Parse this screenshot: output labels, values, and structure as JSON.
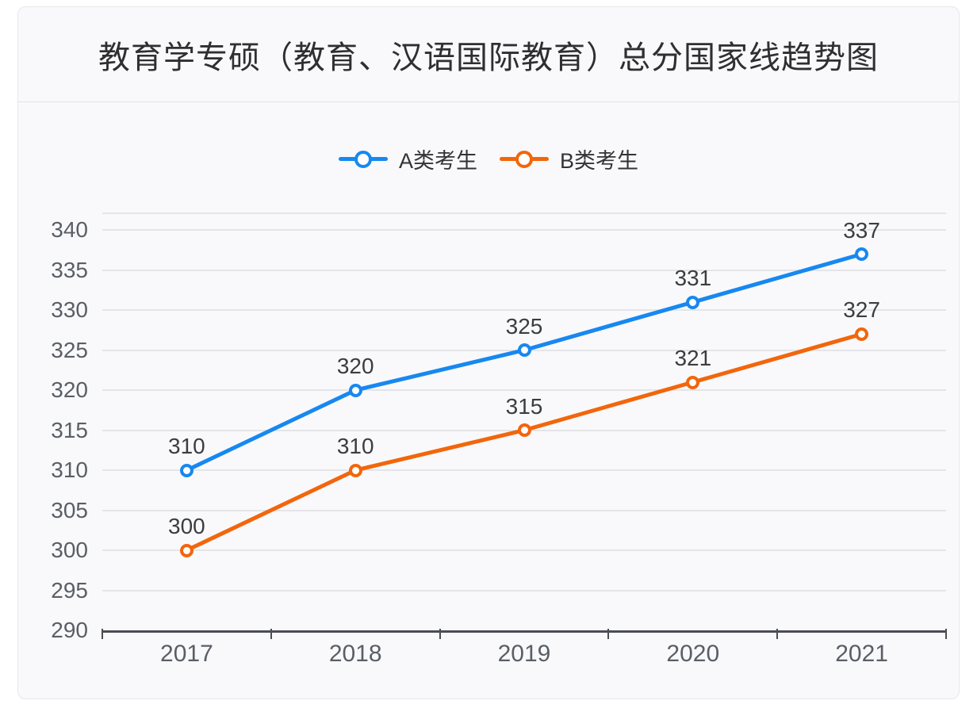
{
  "header": {
    "title": "教育学专硕（教育、汉语国际教育）总分国家线趋势图"
  },
  "chart_data": {
    "type": "line",
    "title": "教育学专硕（教育、汉语国际教育）总分国家线趋势图",
    "categories": [
      "2017",
      "2018",
      "2019",
      "2020",
      "2021"
    ],
    "series": [
      {
        "name": "A类考生",
        "color": "#1788f0",
        "values": [
          310,
          320,
          325,
          331,
          337
        ]
      },
      {
        "name": "B类考生",
        "color": "#f2660c",
        "values": [
          300,
          310,
          315,
          321,
          327
        ]
      }
    ],
    "xlabel": "",
    "ylabel": "",
    "ylim": [
      290,
      342
    ],
    "yticks": [
      290,
      295,
      300,
      305,
      310,
      315,
      320,
      325,
      330,
      335,
      340
    ],
    "ytick_interval": 5,
    "grid": true,
    "point_labels": true,
    "legend_position": "top",
    "styles": {
      "title_color": "#2e2e33",
      "axis_label_color": "#5a5e66",
      "data_label_color": "#3b3d42",
      "gridline_color": "#e4e5e9",
      "axis_line_color": "#4b4d54",
      "marker_fill": "#ffffff"
    }
  }
}
